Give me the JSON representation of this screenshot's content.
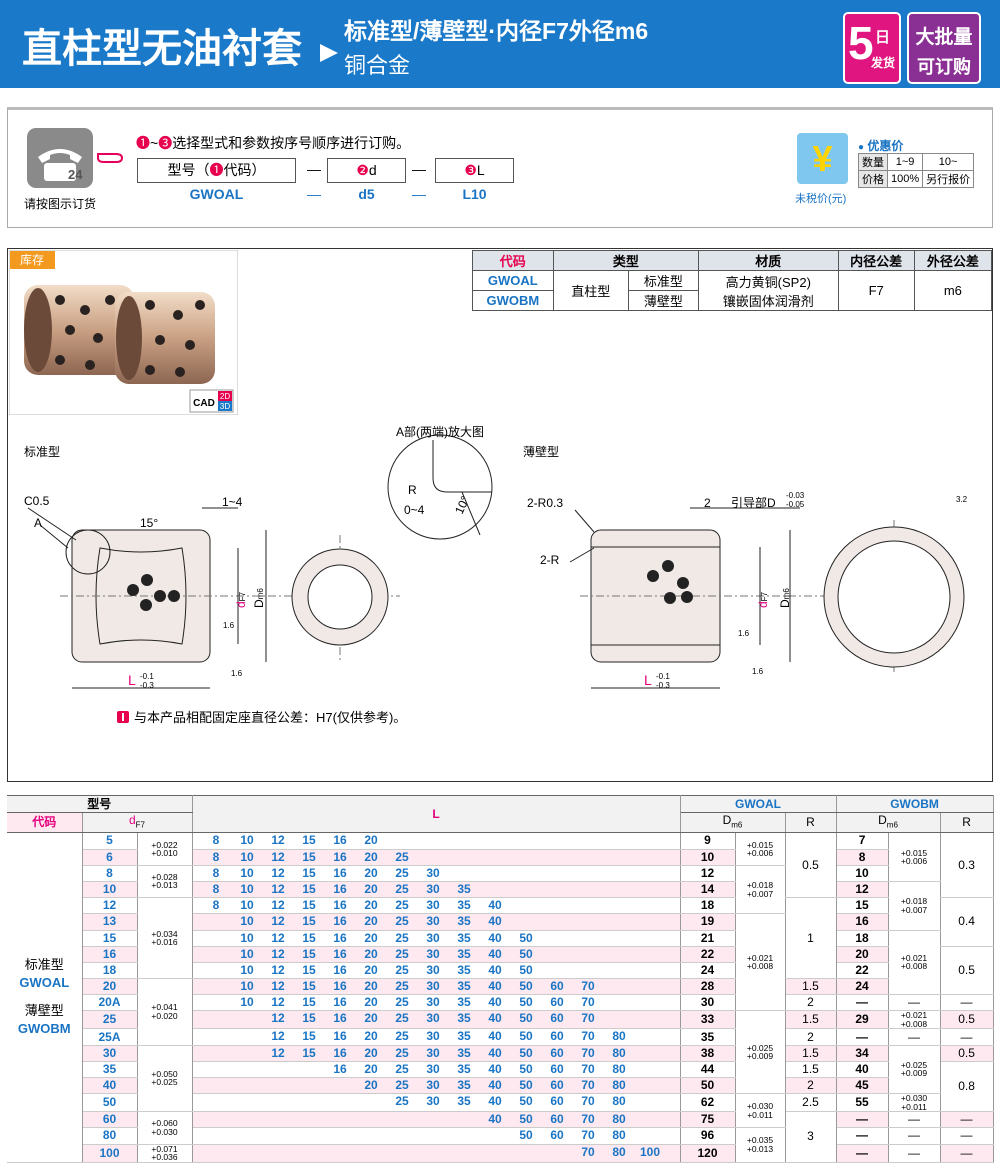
{
  "header": {
    "title": "直柱型无油衬套",
    "subtitle": "标准型/薄壁型·内径F7外径m6",
    "material": "铜合金",
    "badge_days_num": "5",
    "badge_days_unit": "日",
    "badge_days_text": "发货",
    "badge_bulk": "大批量",
    "badge_bulk_text": "可订购"
  },
  "order": {
    "icon_text": "24",
    "note": "请按图示订货",
    "instruction_from": "❶",
    "instruction_sep": "~",
    "instruction_to": "❸",
    "instruction": "选择型式和参数按序号顺序进行订购。",
    "separator": "—",
    "fields": [
      {
        "prefix": "型号（",
        "step": "❶",
        "name": "代码）",
        "example": "GWOAL"
      },
      {
        "step": "❷",
        "name": "d",
        "example": "d5"
      },
      {
        "step": "❸",
        "name": "L",
        "example": "L10"
      }
    ]
  },
  "price": {
    "label": "优惠价",
    "currency_symbol": "¥",
    "caption": "未税价(元)",
    "table": [
      [
        "数量",
        "1~9",
        "10~"
      ],
      [
        "价格",
        "100%",
        "另行报价"
      ]
    ]
  },
  "product": {
    "stock": "库存",
    "cad": "CAD",
    "cad_2d": "2D",
    "cad_3d": "3D",
    "spec_table": {
      "headers": [
        "代码",
        "类型",
        "材质",
        "内径公差",
        "外径公差"
      ],
      "codes": [
        "GWOAL",
        "GWOBM"
      ],
      "type": "直柱型",
      "subtypes": [
        "标准型",
        "薄壁型"
      ],
      "materials": [
        "高力黄铜(SP2)",
        "镶嵌固体润滑剂"
      ],
      "inner_tol": "F7",
      "outer_tol": "m6"
    }
  },
  "drawings": {
    "standard": "标准型",
    "detail_title": "A部(两端)放大图",
    "thin": "薄壁型",
    "chamfer": "C0.5",
    "detail_ref": "A",
    "angle": "15°",
    "length_range": "1~4",
    "d": "d",
    "d_tol": "F7",
    "D": "D",
    "D_tol": "m6",
    "L": "L",
    "L_upper": "-0.1",
    "L_lower": "-0.3",
    "roughness": "1.6",
    "detail_R": "R",
    "detail_range": "0~4",
    "detail_angle": "10°",
    "thin_radius": "2-R0.3",
    "thin_length": "2",
    "guide": "引导部D",
    "guide_upper": "-0.03",
    "guide_lower": "-0.05",
    "thin_R": "2-R",
    "roughness_top": "3.2"
  },
  "note": "与本产品相配固定座直径公差：H7(仅供参考)。",
  "size_table": {
    "header": {
      "model": "型号",
      "code": "代码",
      "d": "d",
      "d_sub": "F7",
      "L": "L",
      "gwoal": "GWOAL",
      "gwobm": "GWOBM",
      "D": "D",
      "D_sub": "m6",
      "R": "R"
    },
    "code_labels": [
      "标准型",
      "GWOAL",
      "薄壁型",
      "GWOBM"
    ],
    "rows": [
      {
        "d": "5",
        "d_tol": [
          "+0.022",
          "+0.010"
        ],
        "L": [
          8,
          10,
          12,
          15,
          16,
          20
        ],
        "D1": "9",
        "D1_tol": [
          "+0.015",
          "+0.006"
        ],
        "R1": "0.5",
        "D2": "7",
        "D2_tol": [
          "+0.015",
          "+0.006"
        ],
        "R2": "0.3"
      },
      {
        "d": "6",
        "d_tol": null,
        "L": [
          8,
          10,
          12,
          15,
          16,
          20,
          25
        ],
        "D1": "10",
        "D1_tol": null,
        "R1": null,
        "D2": "8",
        "D2_tol": null,
        "R2": null
      },
      {
        "d": "8",
        "d_tol": [
          "+0.028",
          "+0.013"
        ],
        "L": [
          8,
          10,
          12,
          15,
          16,
          20,
          25,
          30
        ],
        "D1": "12",
        "D1_tol": [
          "+0.018",
          "+0.007"
        ],
        "R1": null,
        "D2": "10",
        "D2_tol": null,
        "R2": null
      },
      {
        "d": "10",
        "d_tol": null,
        "L": [
          8,
          10,
          12,
          15,
          16,
          20,
          25,
          30,
          35
        ],
        "D1": "14",
        "D1_tol": null,
        "R1": null,
        "D2": "12",
        "D2_tol": [
          "+0.018",
          "+0.007"
        ],
        "R2": null
      },
      {
        "d": "12",
        "d_tol": [
          "+0.034",
          "+0.016"
        ],
        "L": [
          8,
          10,
          12,
          15,
          16,
          20,
          25,
          30,
          35,
          40
        ],
        "D1": "18",
        "D1_tol": null,
        "R1": "1",
        "D2": "15",
        "D2_tol": null,
        "R2": "0.4"
      },
      {
        "d": "13",
        "d_tol": null,
        "L": [
          10,
          12,
          15,
          16,
          20,
          25,
          30,
          35,
          40
        ],
        "D1": "19",
        "D1_tol": [
          "+0.021",
          "+0.008"
        ],
        "R1": null,
        "D2": "16",
        "D2_tol": null,
        "R2": null
      },
      {
        "d": "15",
        "d_tol": null,
        "L": [
          10,
          12,
          15,
          16,
          20,
          25,
          30,
          35,
          40,
          50
        ],
        "D1": "21",
        "D1_tol": null,
        "R1": null,
        "D2": "18",
        "D2_tol": [
          "+0.021",
          "+0.008"
        ],
        "R2": null
      },
      {
        "d": "16",
        "d_tol": null,
        "L": [
          10,
          12,
          15,
          16,
          20,
          25,
          30,
          35,
          40,
          50
        ],
        "D1": "22",
        "D1_tol": null,
        "R1": null,
        "D2": "20",
        "D2_tol": null,
        "R2": "0.5"
      },
      {
        "d": "18",
        "d_tol": null,
        "L": [
          10,
          12,
          15,
          16,
          20,
          25,
          30,
          35,
          40,
          50
        ],
        "D1": "24",
        "D1_tol": null,
        "R1": null,
        "D2": "22",
        "D2_tol": null,
        "R2": null
      },
      {
        "d": "20",
        "d_tol": [
          "+0.041",
          "+0.020"
        ],
        "L": [
          10,
          12,
          15,
          16,
          20,
          25,
          30,
          35,
          40,
          50,
          60,
          70
        ],
        "D1": "28",
        "D1_tol": null,
        "R1": "1.5",
        "D2": "24",
        "D2_tol": null,
        "R2": null
      },
      {
        "d": "20A",
        "d_tol": null,
        "L": [
          10,
          12,
          15,
          16,
          20,
          25,
          30,
          35,
          40,
          50,
          60,
          70
        ],
        "D1": "30",
        "D1_tol": null,
        "R1": "2",
        "D2": "—",
        "D2_tol": "—",
        "R2": "—"
      },
      {
        "d": "25",
        "d_tol": null,
        "L": [
          12,
          15,
          16,
          20,
          25,
          30,
          35,
          40,
          50,
          60,
          70
        ],
        "D1": "33",
        "D1_tol": [
          "+0.025",
          "+0.009"
        ],
        "R1": "1.5",
        "D2": "29",
        "D2_tol": [
          "+0.021",
          "+0.008"
        ],
        "R2": "0.5"
      },
      {
        "d": "25A",
        "d_tol": null,
        "L": [
          12,
          15,
          16,
          20,
          25,
          30,
          35,
          40,
          50,
          60,
          70,
          80
        ],
        "D1": "35",
        "D1_tol": null,
        "R1": "2",
        "D2": "—",
        "D2_tol": "—",
        "R2": "—"
      },
      {
        "d": "30",
        "d_tol": [
          "+0.050",
          "+0.025"
        ],
        "L": [
          12,
          15,
          16,
          20,
          25,
          30,
          35,
          40,
          50,
          60,
          70,
          80
        ],
        "D1": "38",
        "D1_tol": null,
        "R1": "1.5",
        "D2": "34",
        "D2_tol": [
          "+0.025",
          "+0.009"
        ],
        "R2": "0.5"
      },
      {
        "d": "35",
        "d_tol": null,
        "L": [
          16,
          20,
          25,
          30,
          35,
          40,
          50,
          60,
          70,
          80
        ],
        "D1": "44",
        "D1_tol": null,
        "R1": "1.5",
        "D2": "40",
        "D2_tol": null,
        "R2": "0.8"
      },
      {
        "d": "40",
        "d_tol": null,
        "L": [
          20,
          25,
          30,
          35,
          40,
          50,
          60,
          70,
          80
        ],
        "D1": "50",
        "D1_tol": null,
        "R1": "2",
        "D2": "45",
        "D2_tol": null,
        "R2": null
      },
      {
        "d": "50",
        "d_tol": null,
        "L": [
          25,
          30,
          35,
          40,
          50,
          60,
          70,
          80
        ],
        "D1": "62",
        "D1_tol": [
          "+0.030",
          "+0.011"
        ],
        "R1": "2.5",
        "D2": "55",
        "D2_tol": [
          "+0.030",
          "+0.011"
        ],
        "R2": null
      },
      {
        "d": "60",
        "d_tol": [
          "+0.060",
          "+0.030"
        ],
        "L": [
          40,
          50,
          60,
          70,
          80
        ],
        "D1": "75",
        "D1_tol": null,
        "R1": "3",
        "D2": "—",
        "D2_tol": "—",
        "R2": "—"
      },
      {
        "d": "80",
        "d_tol": null,
        "L": [
          50,
          60,
          70,
          80
        ],
        "D1": "96",
        "D1_tol": [
          "+0.035",
          "+0.013"
        ],
        "R1": null,
        "D2": "—",
        "D2_tol": "—",
        "R2": "—"
      },
      {
        "d": "100",
        "d_tol": [
          "+0.071",
          "+0.036"
        ],
        "L": [
          70,
          80,
          100
        ],
        "D1": "120",
        "D1_tol": null,
        "R1": null,
        "D2": "—",
        "D2_tol": "—",
        "R2": "—"
      }
    ]
  }
}
